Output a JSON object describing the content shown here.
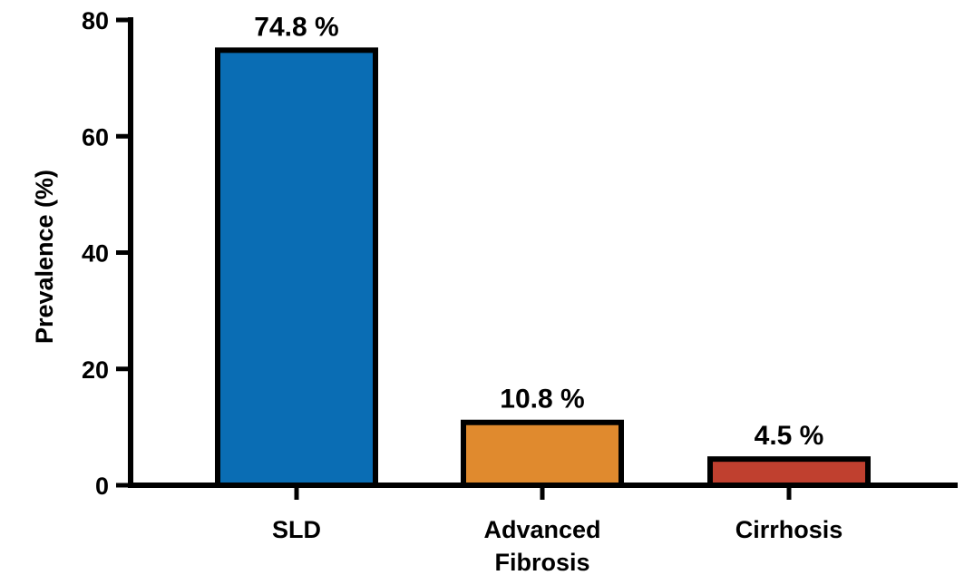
{
  "chart_data": {
    "type": "bar",
    "title": "",
    "xlabel": "",
    "ylabel": "Prevalence (%)",
    "ylim": [
      0,
      80
    ],
    "yticks": [
      0,
      20,
      40,
      60,
      80
    ],
    "grid": false,
    "categories": [
      [
        "SLD"
      ],
      [
        "Advanced",
        "Fibrosis"
      ],
      [
        "Cirrhosis"
      ]
    ],
    "values": [
      74.8,
      10.8,
      4.5
    ],
    "data_labels": [
      "74.8 %",
      "10.8 %",
      "4.5 %"
    ],
    "colors": [
      "#0a6db4",
      "#e08a2e",
      "#c0402f"
    ],
    "bar_outline_color": "#000000"
  }
}
